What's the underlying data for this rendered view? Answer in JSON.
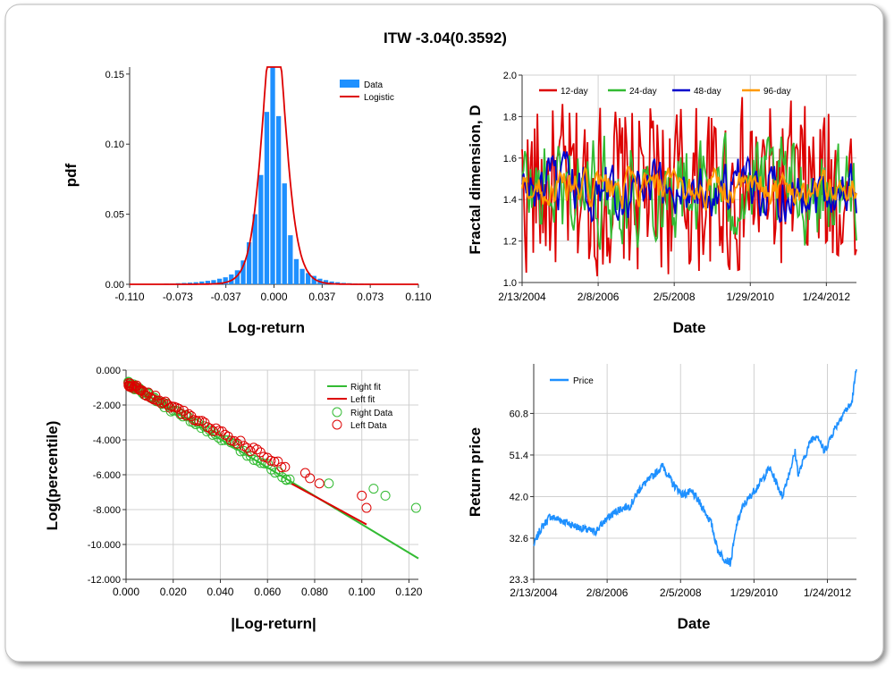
{
  "title": "ITW -3.04(0.3592)",
  "colors": {
    "blue": "#1e90ff",
    "red": "#dd0000",
    "green": "#33bb33",
    "navy": "#0000cc",
    "orange": "#ff9900",
    "grid": "#d0d0d0"
  },
  "chart_data": [
    {
      "type": "bar",
      "xlabel": "Log-return",
      "ylabel": "pdf",
      "xlim": [
        -0.11,
        0.11
      ],
      "ylim": [
        0,
        0.155
      ],
      "xticks": [
        "-0.110",
        "-0.073",
        "-0.037",
        "0.000",
        "0.037",
        "0.073",
        "0.110"
      ],
      "yticks": [
        "0.00",
        "0.05",
        "0.10",
        "0.15"
      ],
      "legend": {
        "position": "top-right",
        "entries": [
          "Data",
          "Logistic"
        ]
      },
      "bars_x": [
        -0.1,
        -0.0955,
        -0.091,
        -0.0865,
        -0.082,
        -0.0775,
        -0.073,
        -0.0685,
        -0.064,
        -0.0595,
        -0.055,
        -0.0505,
        -0.046,
        -0.0415,
        -0.037,
        -0.0325,
        -0.028,
        -0.0235,
        -0.019,
        -0.0145,
        -0.01,
        -0.0055,
        -0.001,
        0.0035,
        0.008,
        0.0125,
        0.017,
        0.0215,
        0.026,
        0.0305,
        0.035,
        0.0395,
        0.044,
        0.0485,
        0.053,
        0.0575,
        0.062,
        0.0665,
        0.071,
        0.0755,
        0.08,
        0.0845,
        0.089,
        0.0935,
        0.098
      ],
      "bars_y": [
        0.0003,
        0,
        0.0003,
        0.0003,
        0.0005,
        0.0005,
        0.0008,
        0.001,
        0.0012,
        0.0015,
        0.002,
        0.0025,
        0.003,
        0.004,
        0.005,
        0.007,
        0.01,
        0.017,
        0.03,
        0.05,
        0.078,
        0.123,
        0.155,
        0.12,
        0.072,
        0.035,
        0.018,
        0.011,
        0.008,
        0.006,
        0.004,
        0.003,
        0.002,
        0.0015,
        0.001,
        0.0008,
        0.0006,
        0.0005,
        0.0004,
        0.0003,
        0.0003,
        0.0002,
        0.0002,
        0.0002,
        0.0001
      ],
      "logistic": {
        "mu": 0.0,
        "s": 0.0058
      }
    },
    {
      "type": "line",
      "xlabel": "Date",
      "ylabel": "Fractal dimension, D",
      "ylim": [
        1.0,
        2.0
      ],
      "xticks": [
        "2/13/2004",
        "2/8/2006",
        "2/5/2008",
        "1/29/2010",
        "1/24/2012"
      ],
      "yticks": [
        "1.0",
        "1.2",
        "1.4",
        "1.6",
        "1.8",
        "2.0"
      ],
      "legend": {
        "position": "top",
        "entries": [
          "12-day",
          "24-day",
          "48-day",
          "96-day"
        ]
      },
      "series": [
        {
          "name": "12-day",
          "color": "#dd0000",
          "amp": 0.3
        },
        {
          "name": "24-day",
          "color": "#33bb33",
          "amp": 0.22
        },
        {
          "name": "48-day",
          "color": "#0000cc",
          "amp": 0.14
        },
        {
          "name": "96-day",
          "color": "#ff9900",
          "amp": 0.09
        }
      ]
    },
    {
      "type": "scatter",
      "xlabel": "|Log-return|",
      "ylabel": "Log(percentile)",
      "xlim": [
        0,
        0.124
      ],
      "ylim": [
        -12,
        0
      ],
      "xticks": [
        "0.000",
        "0.020",
        "0.040",
        "0.060",
        "0.080",
        "0.100",
        "0.120"
      ],
      "yticks": [
        "0.000",
        "-2.000",
        "-4.000",
        "-6.000",
        "-8.000",
        "-10.000",
        "-12.000"
      ],
      "legend": {
        "position": "top-right",
        "entries": [
          "Right fit",
          "Left fit",
          "Right Data",
          "Left Data"
        ]
      },
      "right_fit": [
        [
          0.0,
          -0.7
        ],
        [
          0.124,
          -10.8
        ]
      ],
      "left_fit": [
        [
          0.0,
          -0.7
        ],
        [
          0.102,
          -8.85
        ]
      ],
      "right_outliers": [
        [
          0.068,
          -6.3
        ],
        [
          0.086,
          -6.5
        ],
        [
          0.105,
          -6.8
        ],
        [
          0.11,
          -7.2
        ],
        [
          0.123,
          -7.9
        ]
      ],
      "left_outliers": [
        [
          0.076,
          -5.9
        ],
        [
          0.078,
          -6.2
        ],
        [
          0.082,
          -6.5
        ],
        [
          0.1,
          -7.2
        ],
        [
          0.102,
          -7.9
        ]
      ]
    },
    {
      "type": "line",
      "xlabel": "Date",
      "ylabel": "Return price",
      "ylim": [
        23.3,
        72
      ],
      "xticks": [
        "2/13/2004",
        "2/8/2006",
        "2/5/2008",
        "1/29/2010",
        "1/24/2012"
      ],
      "yticks": [
        "23.3",
        "32.6",
        "42.0",
        "51.4",
        "60.8"
      ],
      "legend": {
        "position": "top-left",
        "entries": [
          "Price"
        ]
      },
      "anchors": [
        [
          0,
          31
        ],
        [
          0.02,
          34.5
        ],
        [
          0.05,
          37.5
        ],
        [
          0.09,
          36.5
        ],
        [
          0.14,
          35
        ],
        [
          0.19,
          34
        ],
        [
          0.22,
          36.5
        ],
        [
          0.26,
          39
        ],
        [
          0.3,
          40
        ],
        [
          0.33,
          44
        ],
        [
          0.36,
          46
        ],
        [
          0.4,
          49
        ],
        [
          0.43,
          45
        ],
        [
          0.46,
          42.5
        ],
        [
          0.49,
          43
        ],
        [
          0.52,
          40
        ],
        [
          0.55,
          36
        ],
        [
          0.57,
          30
        ],
        [
          0.59,
          28
        ],
        [
          0.61,
          27
        ],
        [
          0.63,
          36
        ],
        [
          0.65,
          40
        ],
        [
          0.67,
          42
        ],
        [
          0.69,
          44
        ],
        [
          0.71,
          46
        ],
        [
          0.73,
          48.5
        ],
        [
          0.75,
          45.5
        ],
        [
          0.77,
          42
        ],
        [
          0.79,
          47
        ],
        [
          0.81,
          52
        ],
        [
          0.82,
          47
        ],
        [
          0.84,
          51
        ],
        [
          0.86,
          55
        ],
        [
          0.88,
          56
        ],
        [
          0.9,
          52
        ],
        [
          0.93,
          57
        ],
        [
          0.96,
          61
        ],
        [
          0.985,
          63
        ],
        [
          1.0,
          71
        ]
      ]
    }
  ]
}
